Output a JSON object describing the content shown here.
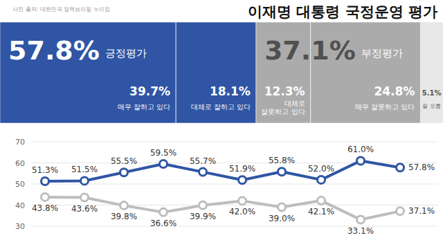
{
  "chart_data": {
    "type": "line",
    "title": "이재명 대통령 국정운영 평가",
    "source": "사진 출처: 대한민국 정책브리핑 누리집",
    "summary": {
      "positive": {
        "value": 57.8,
        "label": "57.8%",
        "text": "긍정평가",
        "color": "#2f55a4",
        "parts": [
          {
            "value": 39.7,
            "label": "39.7%",
            "text": "매우 잘하고 있다"
          },
          {
            "value": 18.1,
            "label": "18.1%",
            "text": "대체로 잘하고 있다"
          }
        ]
      },
      "negative": {
        "value": 37.1,
        "label": "37.1%",
        "text": "부정평가",
        "color": "#ababab",
        "parts": [
          {
            "value": 12.3,
            "label": "12.3%",
            "text": "대체로 잘못하고 있다"
          },
          {
            "value": 24.8,
            "label": "24.8%",
            "text": "매우 잘못하고 있다"
          }
        ]
      },
      "unknown": {
        "value": 5.1,
        "label": "5.1%",
        "text": "잘 모름",
        "color": "#e8e8e8"
      }
    },
    "categories": [
      null,
      null,
      null,
      null,
      null,
      null,
      null,
      null,
      null,
      null
    ],
    "series": [
      {
        "color": "#2f55a4",
        "values": [
          51.3,
          51.5,
          55.5,
          59.5,
          55.7,
          51.9,
          55.8,
          52.0,
          61.0,
          57.8
        ],
        "value_labels": [
          "51.3%",
          "51.5%",
          "55.5%",
          "59.5%",
          "55.7%",
          "51.9%",
          "55.8%",
          "52.0%",
          "61.0%",
          "57.8%"
        ]
      },
      {
        "color": "#bdbdbd",
        "values": [
          43.8,
          43.6,
          39.8,
          36.6,
          39.9,
          42.0,
          39.0,
          42.1,
          33.1,
          37.1
        ],
        "value_labels": [
          "43.8%",
          "43.6%",
          "39.8%",
          "36.6%",
          "39.9%",
          "42.0%",
          "39.0%",
          "42.1%",
          "33.1%",
          "37.1%"
        ]
      }
    ],
    "ylim": [
      30,
      70
    ],
    "yticks": [
      30,
      40,
      50,
      60,
      70
    ],
    "grid": true,
    "data_labels": true,
    "tick_labels": "y",
    "marker": "circle"
  }
}
